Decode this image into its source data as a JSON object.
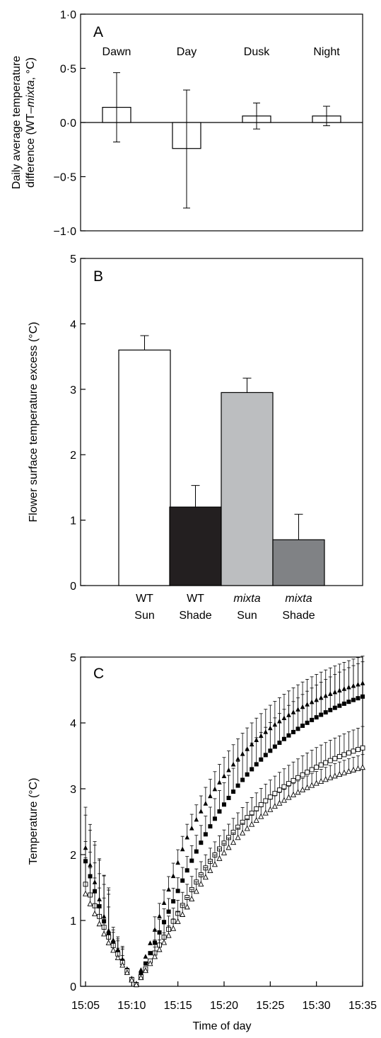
{
  "chart_data": [
    {
      "panel": "A",
      "type": "bar",
      "ylabel_line1": "Daily average temperature",
      "ylabel_line2_pre": "difference (WT–",
      "ylabel_line2_italic": "mixta",
      "ylabel_line2_post": ", °C)",
      "ylim": [
        -1.0,
        1.0
      ],
      "yticks": [
        "−1·0",
        "−0·5",
        "0·0",
        "0·5",
        "1·0"
      ],
      "ytick_values": [
        -1.0,
        -0.5,
        0.0,
        0.5,
        1.0
      ],
      "categories": [
        "Dawn",
        "Day",
        "Dusk",
        "Night"
      ],
      "values": [
        0.14,
        -0.24,
        0.06,
        0.06
      ],
      "error_high": [
        0.46,
        0.3,
        0.18,
        0.15
      ],
      "error_low": [
        -0.18,
        -0.79,
        -0.06,
        -0.03
      ],
      "fill": "#ffffff"
    },
    {
      "panel": "B",
      "type": "bar",
      "ylabel": "Flower surface temperature excess (°C)",
      "ylim": [
        0,
        5
      ],
      "yticks": [
        "0",
        "1",
        "2",
        "3",
        "4",
        "5"
      ],
      "ytick_values": [
        0,
        1,
        2,
        3,
        4,
        5
      ],
      "categories": [
        {
          "line1": "WT",
          "line2": "Sun",
          "italic": false
        },
        {
          "line1": "WT",
          "line2": "Shade",
          "italic": false
        },
        {
          "line1": "mixta",
          "line2": "Sun",
          "italic": true
        },
        {
          "line1": "mixta",
          "line2": "Shade",
          "italic": true
        }
      ],
      "values": [
        3.6,
        1.2,
        2.95,
        0.7
      ],
      "error_high": [
        3.82,
        1.53,
        3.17,
        1.09
      ],
      "colors": [
        "#ffffff",
        "#231f20",
        "#bcbec0",
        "#808285"
      ]
    },
    {
      "panel": "C",
      "type": "scatter",
      "ylabel": "Temperature (°C)",
      "xlabel": "Time of day",
      "ylim": [
        0,
        5
      ],
      "yticks": [
        "0",
        "1",
        "2",
        "3",
        "4",
        "5"
      ],
      "ytick_values": [
        0,
        1,
        2,
        3,
        4,
        5
      ],
      "xticks": [
        "15:05",
        "15:10",
        "15:15",
        "15:20",
        "15:25",
        "15:30",
        "15:35"
      ],
      "xtick_values": [
        0,
        5,
        10,
        15,
        20,
        25,
        30
      ],
      "series": [
        {
          "marker": "filled-triangle",
          "error_frac": 0.09,
          "error_min": 0.2,
          "error_start": 0.62,
          "t": [
            0,
            2.3,
            5.4,
            10.8,
            30
          ],
          "y": [
            2.1,
            0.9,
            0.0,
            2.2,
            4.6
          ],
          "tau": 9.5
        },
        {
          "marker": "filled-square",
          "error_frac": 0.12,
          "error_min": 0.2,
          "error_start": 0.7,
          "t": [
            0,
            2.3,
            5.4,
            10.8,
            30
          ],
          "y": [
            1.9,
            0.85,
            0.0,
            1.7,
            4.4
          ],
          "tau": 10.5
        },
        {
          "marker": "open-square",
          "error_frac": 0.09,
          "error_min": 0.2,
          "error_start": 0.65,
          "t": [
            0,
            2.3,
            5.4,
            10.8,
            30
          ],
          "y": [
            1.55,
            0.8,
            0.0,
            1.3,
            3.62
          ],
          "tau": 11.5
        },
        {
          "marker": "open-triangle",
          "error_frac": 0.06,
          "error_min": 0.15,
          "error_start": 0.55,
          "t": [
            0,
            2.3,
            5.4,
            10.8,
            30
          ],
          "y": [
            1.4,
            0.7,
            0.0,
            1.15,
            3.32
          ],
          "tau": 10.0
        }
      ]
    }
  ]
}
